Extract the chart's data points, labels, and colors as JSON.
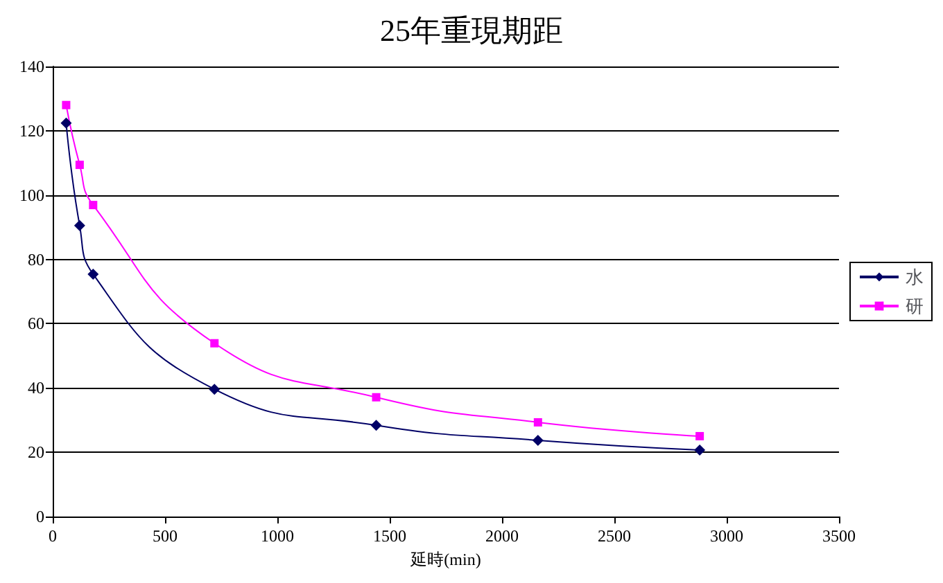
{
  "chart_data": {
    "type": "line",
    "title": "25年重現期距",
    "xlabel": "延時(min)",
    "x": [
      60,
      120,
      180,
      720,
      1440,
      2160,
      2880
    ],
    "series": [
      {
        "name": "水",
        "color": "#000066",
        "marker": "diamond",
        "values": [
          122.4,
          90.5,
          75.4,
          39.6,
          28.4,
          23.7,
          20.7
        ]
      },
      {
        "name": "研",
        "color": "#ff00ff",
        "marker": "square",
        "values": [
          128,
          109.4,
          96.9,
          53.9,
          37.1,
          29.3,
          25
        ]
      }
    ],
    "xlim": [
      0,
      3500
    ],
    "xticks": [
      0,
      500,
      1000,
      1500,
      2000,
      2500,
      3000,
      3500
    ],
    "ylim": [
      0,
      140
    ],
    "yticks": [
      0,
      20,
      40,
      60,
      80,
      100,
      120,
      140
    ],
    "grid": "y",
    "legend": "right"
  }
}
